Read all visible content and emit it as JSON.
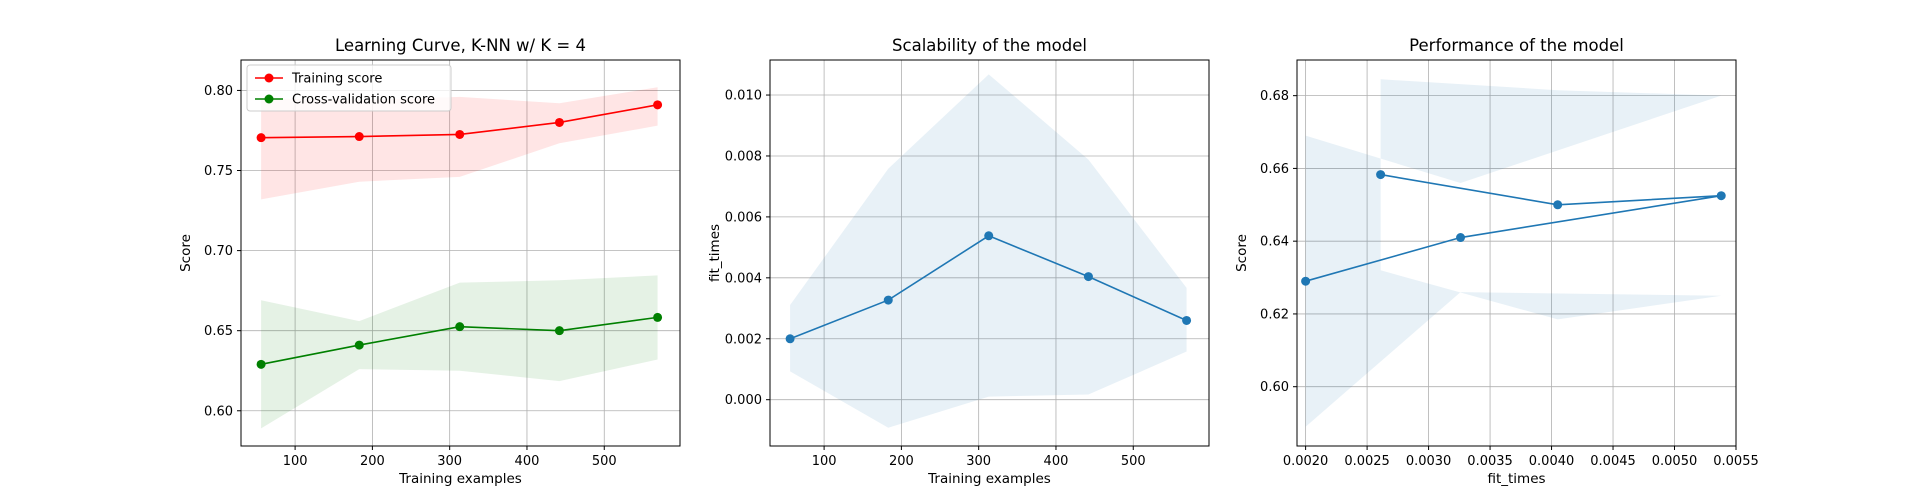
{
  "chart_data": [
    {
      "type": "line",
      "title": "Learning Curve, K-NN w/ K = 4",
      "xlabel": "Training examples",
      "ylabel": "Score",
      "xlim": [
        30,
        598
      ],
      "ylim": [
        0.578,
        0.819
      ],
      "xticks": [
        100,
        200,
        300,
        400,
        500
      ],
      "xtick_labels": [
        "100",
        "200",
        "300",
        "400",
        "500"
      ],
      "yticks": [
        0.6,
        0.65,
        0.7,
        0.75,
        0.8
      ],
      "ytick_labels": [
        "0.60",
        "0.65",
        "0.70",
        "0.75",
        "0.80"
      ],
      "grid": true,
      "legend": "upper-left",
      "series": [
        {
          "name": "Training score",
          "color": "#ff0000",
          "fill": "#ff0000",
          "x": [
            56,
            183,
            313,
            442,
            569
          ],
          "y": [
            0.7705,
            0.7712,
            0.7725,
            0.78,
            0.791
          ],
          "band_low": [
            0.732,
            0.743,
            0.746,
            0.767,
            0.778
          ],
          "band_high": [
            0.795,
            0.794,
            0.796,
            0.792,
            0.802
          ]
        },
        {
          "name": "Cross-validation score",
          "color": "#008000",
          "fill": "#008000",
          "x": [
            56,
            183,
            313,
            442,
            569
          ],
          "y": [
            0.629,
            0.641,
            0.6525,
            0.65,
            0.6583
          ],
          "band_low": [
            0.589,
            0.626,
            0.625,
            0.6185,
            0.632
          ],
          "band_high": [
            0.669,
            0.656,
            0.68,
            0.6815,
            0.6845
          ]
        }
      ]
    },
    {
      "type": "line",
      "title": "Scalability of the model",
      "xlabel": "Training examples",
      "ylabel": "fit_times",
      "xlim": [
        30,
        598
      ],
      "ylim": [
        -0.00152,
        0.01115
      ],
      "xticks": [
        100,
        200,
        300,
        400,
        500
      ],
      "xtick_labels": [
        "100",
        "200",
        "300",
        "400",
        "500"
      ],
      "yticks": [
        0.0,
        0.002,
        0.004,
        0.006,
        0.008,
        0.01
      ],
      "ytick_labels": [
        "0.000",
        "0.002",
        "0.004",
        "0.006",
        "0.008",
        "0.010"
      ],
      "grid": true,
      "series": [
        {
          "color": "#1f77b4",
          "fill": "#1f77b4",
          "x": [
            56,
            183,
            313,
            442,
            569
          ],
          "y": [
            0.002,
            0.00327,
            0.00538,
            0.00404,
            0.0026
          ],
          "band_low": [
            0.00093,
            -0.00092,
            0.0001,
            0.00017,
            0.00158
          ],
          "band_high": [
            0.00311,
            0.00758,
            0.01068,
            0.00788,
            0.00367
          ]
        }
      ]
    },
    {
      "type": "line",
      "title": "Performance of the model",
      "xlabel": "fit_times",
      "ylabel": "Score",
      "xlim": [
        0.00193,
        0.0055
      ],
      "ylim": [
        0.5837,
        0.6898
      ],
      "xticks": [
        0.002,
        0.0025,
        0.003,
        0.0035,
        0.004,
        0.0045,
        0.005,
        0.0055
      ],
      "xtick_labels": [
        "0.0020",
        "0.0025",
        "0.0030",
        "0.0035",
        "0.0040",
        "0.0045",
        "0.0050",
        "0.0055"
      ],
      "yticks": [
        0.6,
        0.62,
        0.64,
        0.66,
        0.68
      ],
      "ytick_labels": [
        "0.60",
        "0.62",
        "0.64",
        "0.66",
        "0.68"
      ],
      "grid": true,
      "series": [
        {
          "color": "#1f77b4",
          "fill": "#1f77b4",
          "x": [
            0.002,
            0.00326,
            0.00538,
            0.00405,
            0.00261
          ],
          "y": [
            0.629,
            0.641,
            0.6525,
            0.65,
            0.6583
          ],
          "band_low": [
            0.589,
            0.626,
            0.625,
            0.6185,
            0.632
          ],
          "band_high": [
            0.669,
            0.656,
            0.68,
            0.6815,
            0.6845
          ]
        }
      ]
    }
  ]
}
